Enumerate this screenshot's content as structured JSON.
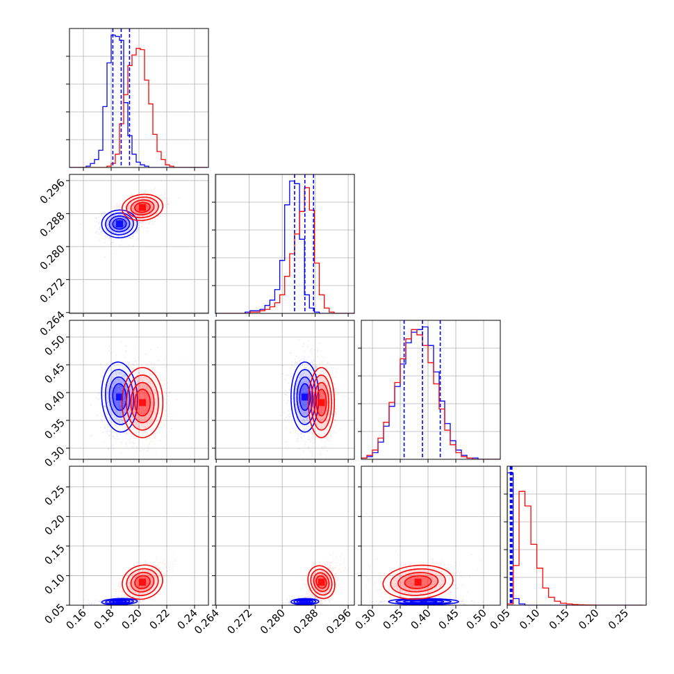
{
  "chart_data": {
    "type": "corner",
    "title": "",
    "grid": true,
    "series": [
      {
        "color": "#0000ff"
      },
      {
        "color": "#ff0000"
      }
    ],
    "parameters": [
      {
        "axis_range": [
          0.15,
          0.25
        ],
        "ticks": [
          "0.16",
          "0.18",
          "0.20",
          "0.22",
          "0.24"
        ],
        "tick_values": [
          0.16,
          0.18,
          0.2,
          0.22,
          0.24
        ]
      },
      {
        "axis_range": [
          0.2638,
          0.2975
        ],
        "ticks": [
          "0.264",
          "0.272",
          "0.280",
          "0.288",
          "0.296"
        ],
        "tick_values": [
          0.264,
          0.272,
          0.28,
          0.288,
          0.296
        ]
      },
      {
        "axis_range": [
          0.28,
          0.53
        ],
        "ticks": [
          "0.30",
          "0.35",
          "0.40",
          "0.45",
          "0.50"
        ],
        "tick_values": [
          0.3,
          0.35,
          0.4,
          0.45,
          0.5
        ]
      },
      {
        "axis_range": [
          0.05,
          0.285
        ],
        "ticks": [
          "0.05",
          "0.10",
          "0.15",
          "0.20",
          "0.25"
        ],
        "tick_values": [
          0.05,
          0.1,
          0.15,
          0.2,
          0.25
        ]
      }
    ],
    "marginals": [
      {
        "bins": [
          0.15,
          0.153,
          0.156,
          0.159,
          0.162,
          0.165,
          0.168,
          0.171,
          0.174,
          0.177,
          0.18,
          0.183,
          0.186,
          0.189,
          0.192,
          0.195,
          0.198,
          0.201,
          0.204,
          0.207,
          0.21,
          0.213,
          0.216,
          0.219,
          0.222,
          0.225,
          0.228,
          0.231,
          0.234,
          0.237,
          0.24,
          0.243,
          0.246,
          0.249
        ],
        "series": [
          [
            0,
            0,
            0,
            0,
            0.01,
            0.03,
            0.06,
            0.13,
            0.46,
            0.79,
            1.0,
            0.99,
            0.96,
            0.49,
            0.24,
            0.1,
            0.04,
            0.02,
            0.01,
            0,
            0,
            0,
            0,
            0,
            0,
            0,
            0,
            0,
            0,
            0,
            0,
            0,
            0
          ],
          [
            0,
            0,
            0,
            0,
            0,
            0,
            0,
            0,
            0,
            0.01,
            0.03,
            0.1,
            0.33,
            0.55,
            0.77,
            0.85,
            0.9,
            0.89,
            0.66,
            0.48,
            0.25,
            0.12,
            0.06,
            0.02,
            0.01,
            0,
            0,
            0,
            0,
            0,
            0,
            0,
            0
          ]
        ],
        "quantiles": [
          0.1812,
          0.1872,
          0.1932
        ]
      },
      {
        "bins": [
          0.2638,
          0.265,
          0.2662,
          0.2674,
          0.2686,
          0.2698,
          0.271,
          0.2722,
          0.2734,
          0.2746,
          0.2758,
          0.277,
          0.2782,
          0.2794,
          0.2806,
          0.2818,
          0.283,
          0.2842,
          0.2854,
          0.2866,
          0.2878,
          0.289,
          0.2902,
          0.2914,
          0.2926,
          0.2938,
          0.295,
          0.2962,
          0.2974
        ],
        "series": [
          [
            0,
            0,
            0,
            0,
            0,
            0,
            0.01,
            0.02,
            0.02,
            0.03,
            0.06,
            0.1,
            0.18,
            0.4,
            0.82,
            1.0,
            0.98,
            0.56,
            0.14,
            0.04,
            0.01,
            0,
            0,
            0,
            0,
            0,
            0,
            0
          ],
          [
            0,
            0,
            0,
            0,
            0,
            0,
            0,
            0.01,
            0.01,
            0.02,
            0.03,
            0.05,
            0.08,
            0.14,
            0.28,
            0.45,
            0.6,
            0.77,
            0.95,
            0.78,
            0.38,
            0.14,
            0.04,
            0.01,
            0,
            0,
            0,
            0
          ]
        ],
        "quantiles": [
          0.283,
          0.2855,
          0.2876
        ]
      },
      {
        "bins": [
          0.28,
          0.29,
          0.3,
          0.31,
          0.32,
          0.33,
          0.34,
          0.35,
          0.36,
          0.37,
          0.38,
          0.39,
          0.4,
          0.41,
          0.42,
          0.43,
          0.44,
          0.45,
          0.46,
          0.47,
          0.48,
          0.49,
          0.5,
          0.51,
          0.52,
          0.53
        ],
        "series": [
          [
            0.01,
            0.02,
            0.05,
            0.13,
            0.25,
            0.4,
            0.55,
            0.72,
            0.88,
            0.96,
            0.98,
            1.0,
            0.86,
            0.66,
            0.44,
            0.27,
            0.14,
            0.07,
            0.03,
            0.01,
            0.01,
            0,
            0,
            0,
            0
          ],
          [
            0.01,
            0.03,
            0.07,
            0.16,
            0.28,
            0.43,
            0.58,
            0.76,
            0.91,
            0.98,
            0.94,
            0.86,
            0.73,
            0.57,
            0.38,
            0.22,
            0.11,
            0.05,
            0.02,
            0.01,
            0,
            0,
            0,
            0,
            0
          ]
        ],
        "quantiles": [
          0.357,
          0.39,
          0.422
        ]
      },
      {
        "bins": [
          0.05,
          0.06,
          0.07,
          0.08,
          0.09,
          0.1,
          0.11,
          0.12,
          0.13,
          0.14,
          0.15,
          0.16,
          0.17,
          0.18,
          0.19,
          0.2,
          0.21,
          0.22,
          0.23,
          0.24,
          0.25,
          0.26,
          0.27,
          0.28
        ],
        "series": [
          [
            1.0,
            0.05,
            0.01,
            0,
            0,
            0,
            0,
            0,
            0,
            0,
            0,
            0,
            0,
            0,
            0,
            0,
            0,
            0,
            0,
            0,
            0,
            0,
            0
          ],
          [
            0.01,
            0.3,
            0.86,
            0.75,
            0.46,
            0.28,
            0.13,
            0.06,
            0.03,
            0.015,
            0.01,
            0.005,
            0.003,
            0.002,
            0.001,
            0,
            0,
            0,
            0,
            0,
            0,
            0,
            0
          ]
        ],
        "quantiles": [
          0.0552,
          0.0565,
          0.058
        ]
      }
    ],
    "joint": [
      {
        "x": 0,
        "y": 1,
        "rho": [
          0.1,
          0.3
        ],
        "series": [
          {
            "mean": [
              0.186,
              0.2855
            ],
            "sd": [
              0.0061,
              0.0016
            ]
          },
          {
            "mean": [
              0.2025,
              0.2895
            ],
            "sd": [
              0.007,
              0.0015
            ]
          }
        ]
      },
      {
        "x": 0,
        "y": 2,
        "rho": [
          0.05,
          0.0
        ],
        "series": [
          {
            "mean": [
              0.186,
              0.392
            ],
            "sd": [
              0.0061,
              0.03
            ]
          },
          {
            "mean": [
              0.2025,
              0.382
            ],
            "sd": [
              0.007,
              0.03
            ]
          }
        ]
      },
      {
        "x": 1,
        "y": 2,
        "rho": [
          0.0,
          0.0
        ],
        "series": [
          {
            "mean": [
              0.2855,
              0.392
            ],
            "sd": [
              0.0016,
              0.03
            ]
          },
          {
            "mean": [
              0.2895,
              0.382
            ],
            "sd": [
              0.0015,
              0.03
            ]
          }
        ]
      },
      {
        "x": 0,
        "y": 3,
        "rho": [
          0.3,
          0.65
        ],
        "series": [
          {
            "mean": [
              0.186,
              0.056
            ],
            "sd": [
              0.0061,
              0.0025
            ]
          },
          {
            "mean": [
              0.2025,
              0.089
            ],
            "sd": [
              0.007,
              0.0135
            ]
          }
        ]
      },
      {
        "x": 1,
        "y": 3,
        "rho": [
          0.1,
          0.5
        ],
        "series": [
          {
            "mean": [
              0.2855,
              0.056
            ],
            "sd": [
              0.0016,
              0.0025
            ]
          },
          {
            "mean": [
              0.2895,
              0.089
            ],
            "sd": [
              0.0015,
              0.0135
            ]
          }
        ]
      },
      {
        "x": 2,
        "y": 3,
        "rho": [
          0.0,
          0.25
        ],
        "series": [
          {
            "mean": [
              0.392,
              0.056
            ],
            "sd": [
              0.03,
              0.0025
            ]
          },
          {
            "mean": [
              0.382,
              0.089
            ],
            "sd": [
              0.03,
              0.0135
            ]
          }
        ]
      }
    ]
  }
}
